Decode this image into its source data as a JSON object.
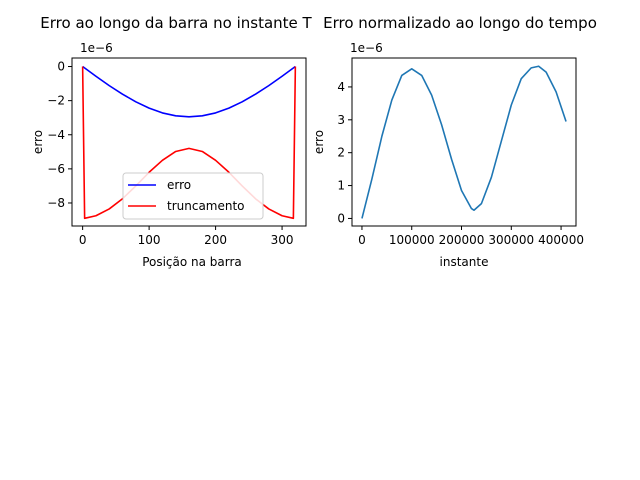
{
  "chart_data": [
    {
      "type": "line",
      "title": "Erro ao longo da barra no instante T",
      "xlabel": "Posição na barra",
      "ylabel": "erro",
      "y_offset_label": "1e−6",
      "xlim": [
        -16,
        336
      ],
      "ylim": [
        -9.35,
        0.5
      ],
      "x_ticks": [
        0,
        100,
        200,
        300
      ],
      "y_ticks": [
        0,
        -2,
        -4,
        -6,
        -8
      ],
      "y_tick_labels": [
        "0",
        "−2",
        "−4",
        "−6",
        "−8"
      ],
      "grid": false,
      "legend_position": "lower center",
      "series": [
        {
          "name": "erro",
          "color": "#0000ff",
          "x": [
            0,
            20,
            40,
            60,
            80,
            100,
            120,
            140,
            160,
            180,
            200,
            220,
            240,
            260,
            280,
            300,
            320
          ],
          "y": [
            0,
            -0.57,
            -1.12,
            -1.62,
            -2.07,
            -2.44,
            -2.72,
            -2.89,
            -2.95,
            -2.89,
            -2.72,
            -2.44,
            -2.07,
            -1.62,
            -1.12,
            -0.57,
            0
          ]
        },
        {
          "name": "truncamento",
          "color": "#ff0000",
          "x": [
            0,
            3,
            20,
            40,
            60,
            80,
            100,
            120,
            140,
            160,
            180,
            200,
            220,
            240,
            260,
            280,
            300,
            317,
            320
          ],
          "y": [
            0,
            -8.9,
            -8.75,
            -8.35,
            -7.75,
            -7.0,
            -6.2,
            -5.5,
            -4.98,
            -4.8,
            -4.98,
            -5.5,
            -6.2,
            -7.0,
            -7.75,
            -8.35,
            -8.75,
            -8.9,
            0
          ]
        }
      ]
    },
    {
      "type": "line",
      "title": "Erro normalizado ao longo do tempo",
      "xlabel": "instante",
      "ylabel": "erro",
      "y_offset_label": "1e−6",
      "xlim": [
        -20000,
        430000
      ],
      "ylim": [
        -0.23,
        4.88
      ],
      "x_ticks": [
        0,
        100000,
        200000,
        300000,
        400000
      ],
      "x_tick_labels": [
        "0",
        "100000",
        "200000",
        "300000",
        "400000"
      ],
      "y_ticks": [
        0,
        1,
        2,
        3,
        4
      ],
      "y_tick_labels": [
        "0",
        "1",
        "2",
        "3",
        "4"
      ],
      "grid": false,
      "series": [
        {
          "color": "#1f77b4",
          "x": [
            0,
            20000,
            40000,
            60000,
            80000,
            100000,
            120000,
            140000,
            160000,
            180000,
            200000,
            220000,
            225000,
            240000,
            260000,
            280000,
            300000,
            320000,
            340000,
            355000,
            370000,
            390000,
            410000
          ],
          "y": [
            0.0,
            1.2,
            2.5,
            3.6,
            4.35,
            4.55,
            4.35,
            3.75,
            2.85,
            1.8,
            0.85,
            0.3,
            0.25,
            0.45,
            1.25,
            2.35,
            3.45,
            4.25,
            4.58,
            4.63,
            4.45,
            3.85,
            2.95
          ]
        }
      ]
    }
  ]
}
